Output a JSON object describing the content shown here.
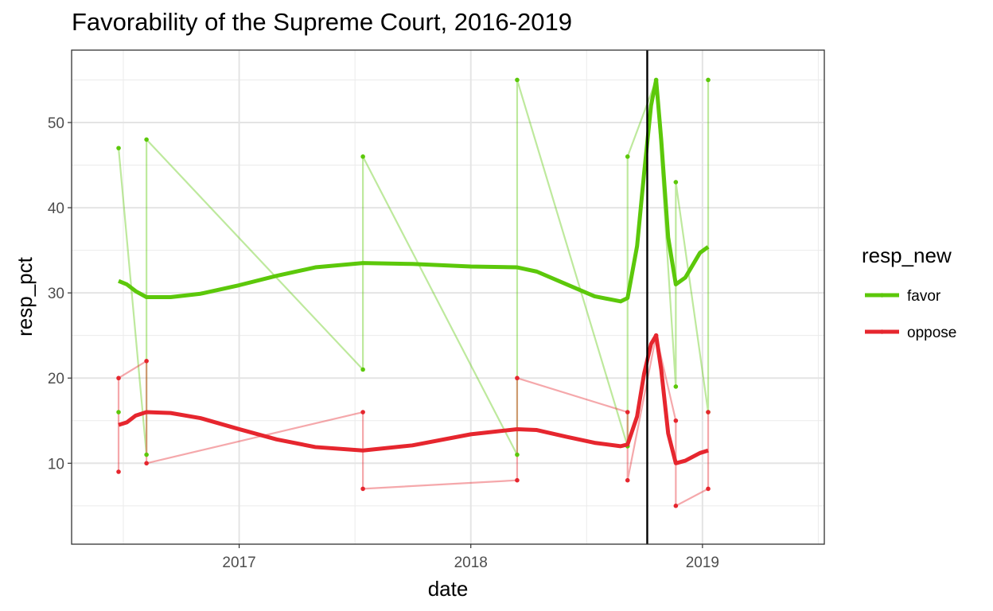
{
  "chart_data": {
    "type": "line",
    "title": "Favorability of the Supreme Court, 2016-2019",
    "xlabel": "date",
    "ylabel": "resp_pct",
    "xlim": [
      "2016-04-12",
      "2019-07-12"
    ],
    "ylim": [
      0.5,
      58.5
    ],
    "x_ticks": [
      "2017-01-01",
      "2018-01-01",
      "2019-01-01"
    ],
    "x_tick_labels": [
      "2017",
      "2018",
      "2019"
    ],
    "y_ticks": [
      10,
      20,
      30,
      40,
      50
    ],
    "y_tick_labels": [
      "10",
      "20",
      "30",
      "40",
      "50"
    ],
    "grid": true,
    "vline": {
      "x": "2018-10-06",
      "color": "#000000"
    },
    "legend": {
      "title": "resp_new",
      "position": "right"
    },
    "series": [
      {
        "name": "favor",
        "color": "#5cc80a",
        "points": [
          [
            "2016-06-25",
            47
          ],
          [
            "2016-06-25",
            16
          ],
          [
            "2016-08-08",
            48
          ],
          [
            "2016-08-08",
            11
          ],
          [
            "2017-07-15",
            46
          ],
          [
            "2017-07-15",
            21
          ],
          [
            "2018-03-15",
            55
          ],
          [
            "2018-03-15",
            11
          ],
          [
            "2018-09-05",
            46
          ],
          [
            "2018-09-05",
            12
          ],
          [
            "2018-10-20",
            55
          ],
          [
            "2018-11-20",
            43
          ],
          [
            "2018-11-20",
            19
          ],
          [
            "2019-01-10",
            55
          ],
          [
            "2019-01-10",
            16
          ]
        ],
        "raw_path": [
          [
            "2016-06-25",
            47
          ],
          [
            "2016-08-08",
            11
          ],
          [
            "2016-08-08",
            48
          ],
          [
            "2017-07-15",
            21
          ],
          [
            "2017-07-15",
            46
          ],
          [
            "2018-03-15",
            11
          ],
          [
            "2018-03-15",
            55
          ],
          [
            "2018-09-05",
            12
          ],
          [
            "2018-09-05",
            46
          ],
          [
            "2018-10-20",
            55
          ],
          [
            "2018-11-20",
            19
          ],
          [
            "2018-11-20",
            43
          ],
          [
            "2019-01-10",
            16
          ],
          [
            "2019-01-10",
            55
          ]
        ],
        "smooth": [
          [
            "2016-06-25",
            31.4
          ],
          [
            "2016-07-08",
            31.0
          ],
          [
            "2016-07-22",
            30.2
          ],
          [
            "2016-08-08",
            29.5
          ],
          [
            "2016-09-15",
            29.5
          ],
          [
            "2016-11-01",
            29.9
          ],
          [
            "2017-01-01",
            30.9
          ],
          [
            "2017-03-01",
            32.0
          ],
          [
            "2017-05-01",
            33.0
          ],
          [
            "2017-07-15",
            33.5
          ],
          [
            "2017-10-01",
            33.4
          ],
          [
            "2018-01-01",
            33.1
          ],
          [
            "2018-03-15",
            33.0
          ],
          [
            "2018-04-15",
            32.5
          ],
          [
            "2018-06-01",
            31.0
          ],
          [
            "2018-07-15",
            29.6
          ],
          [
            "2018-08-25",
            29.0
          ],
          [
            "2018-09-05",
            29.4
          ],
          [
            "2018-09-20",
            35.5
          ],
          [
            "2018-10-01",
            44.0
          ],
          [
            "2018-10-12",
            52.0
          ],
          [
            "2018-10-20",
            55.0
          ],
          [
            "2018-10-28",
            48.0
          ],
          [
            "2018-11-08",
            36.5
          ],
          [
            "2018-11-20",
            31.0
          ],
          [
            "2018-12-05",
            31.8
          ],
          [
            "2018-12-28",
            34.7
          ],
          [
            "2019-01-10",
            35.4
          ]
        ]
      },
      {
        "name": "oppose",
        "color": "#e6262e",
        "points": [
          [
            "2016-06-25",
            20
          ],
          [
            "2016-06-25",
            9
          ],
          [
            "2016-08-08",
            22
          ],
          [
            "2016-08-08",
            10
          ],
          [
            "2017-07-15",
            16
          ],
          [
            "2017-07-15",
            7
          ],
          [
            "2018-03-15",
            20
          ],
          [
            "2018-03-15",
            8
          ],
          [
            "2018-09-05",
            16
          ],
          [
            "2018-09-05",
            8
          ],
          [
            "2018-10-20",
            25
          ],
          [
            "2018-11-20",
            15
          ],
          [
            "2018-11-20",
            5
          ],
          [
            "2019-01-10",
            16
          ],
          [
            "2019-01-10",
            7
          ]
        ],
        "raw_path": [
          [
            "2016-06-25",
            9
          ],
          [
            "2016-06-25",
            20
          ],
          [
            "2016-08-08",
            22
          ],
          [
            "2016-08-08",
            10
          ],
          [
            "2017-07-15",
            16
          ],
          [
            "2017-07-15",
            7
          ],
          [
            "2018-03-15",
            8
          ],
          [
            "2018-03-15",
            20
          ],
          [
            "2018-09-05",
            16
          ],
          [
            "2018-09-05",
            8
          ],
          [
            "2018-10-20",
            25
          ],
          [
            "2018-11-20",
            15
          ],
          [
            "2018-11-20",
            5
          ],
          [
            "2019-01-10",
            7
          ],
          [
            "2019-01-10",
            16
          ]
        ],
        "smooth": [
          [
            "2016-06-25",
            14.5
          ],
          [
            "2016-07-08",
            14.8
          ],
          [
            "2016-07-22",
            15.6
          ],
          [
            "2016-08-08",
            16.0
          ],
          [
            "2016-09-15",
            15.9
          ],
          [
            "2016-11-01",
            15.3
          ],
          [
            "2017-01-01",
            14.0
          ],
          [
            "2017-03-01",
            12.8
          ],
          [
            "2017-05-01",
            11.9
          ],
          [
            "2017-07-15",
            11.5
          ],
          [
            "2017-10-01",
            12.1
          ],
          [
            "2018-01-01",
            13.4
          ],
          [
            "2018-03-15",
            14.0
          ],
          [
            "2018-04-15",
            13.9
          ],
          [
            "2018-06-01",
            13.1
          ],
          [
            "2018-07-15",
            12.4
          ],
          [
            "2018-08-25",
            12.0
          ],
          [
            "2018-09-05",
            12.2
          ],
          [
            "2018-09-20",
            15.5
          ],
          [
            "2018-10-01",
            20.5
          ],
          [
            "2018-10-12",
            24.0
          ],
          [
            "2018-10-20",
            25.0
          ],
          [
            "2018-10-28",
            21.0
          ],
          [
            "2018-11-08",
            13.5
          ],
          [
            "2018-11-20",
            10.0
          ],
          [
            "2018-12-05",
            10.3
          ],
          [
            "2018-12-28",
            11.2
          ],
          [
            "2019-01-10",
            11.5
          ]
        ]
      }
    ]
  }
}
